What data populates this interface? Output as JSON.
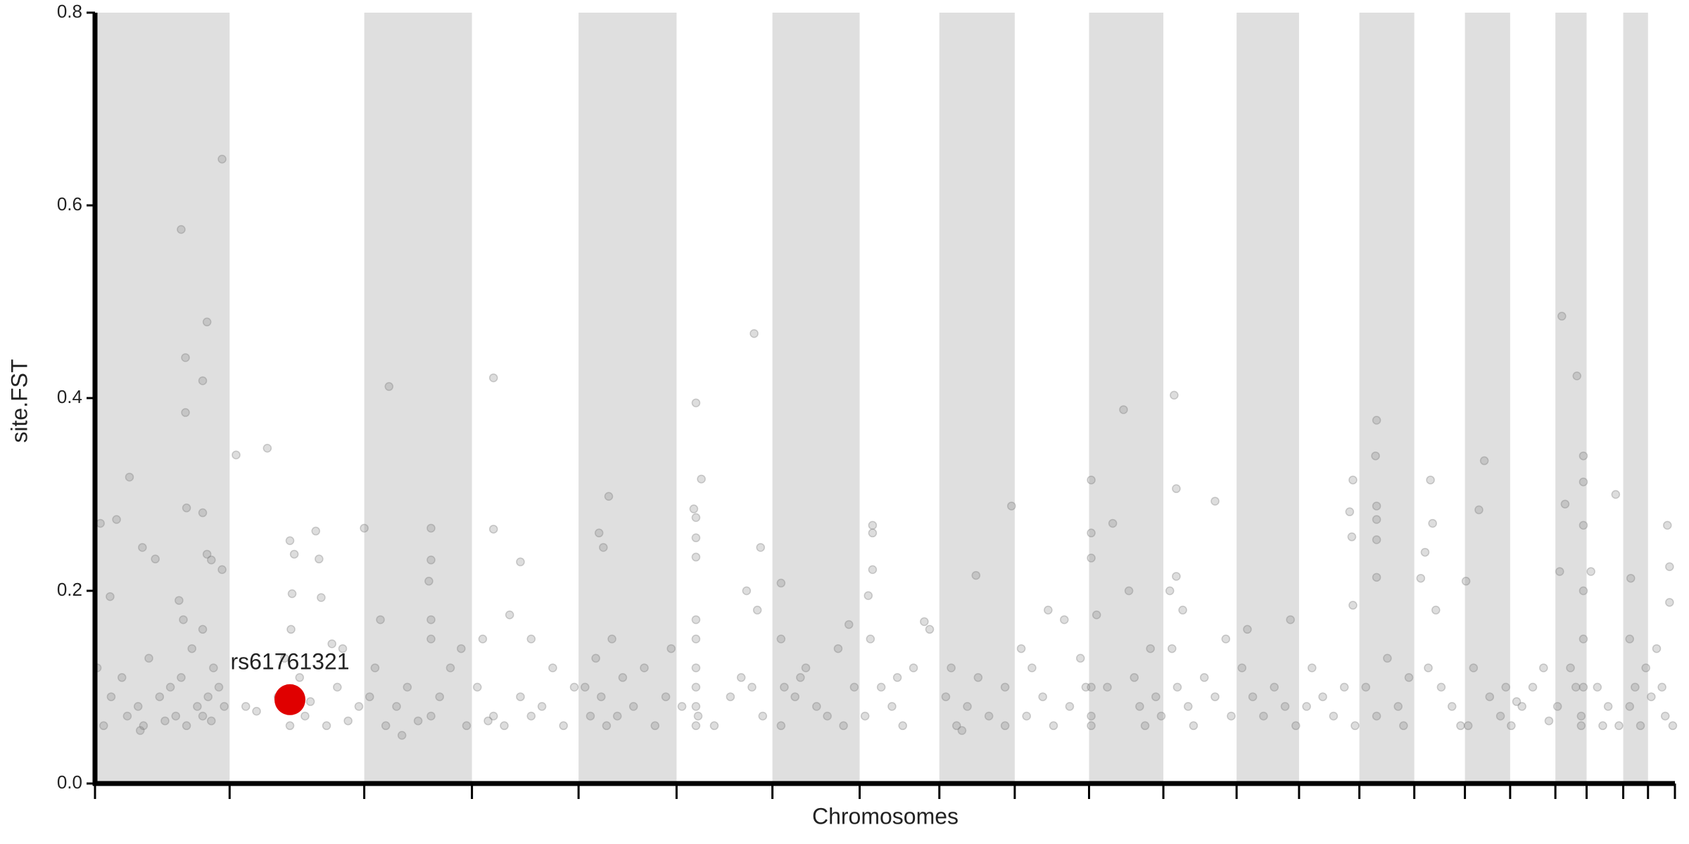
{
  "chart_data": {
    "type": "scatter",
    "xlabel": "Chromosomes",
    "ylabel": "site.FST",
    "xlim": [
      0,
      1467
    ],
    "xticks": [
      0,
      125,
      250,
      350,
      449,
      540,
      629,
      710,
      784,
      854,
      923,
      992,
      1060,
      1118,
      1174,
      1225,
      1272,
      1314,
      1356,
      1385,
      1419,
      1442,
      1467
    ],
    "ylim": [
      0,
      0.8
    ],
    "yticks": [
      {
        "value": 0,
        "label": "0.0"
      },
      {
        "value": 0.2,
        "label": "0.2"
      },
      {
        "value": 0.4,
        "label": "0.4"
      },
      {
        "value": 0.6,
        "label": "0.6"
      },
      {
        "value": 0.8,
        "label": "0.8"
      }
    ],
    "band_color": "#dfdfdf",
    "series": [
      {
        "color": "#777777",
        "x": [
          80,
          118,
          84,
          100,
          104,
          84,
          85,
          32,
          20,
          44,
          56,
          14,
          100,
          104,
          108,
          118,
          78,
          82,
          100,
          5,
          2,
          8,
          15,
          25,
          30,
          40,
          45,
          50,
          60,
          70,
          75,
          80,
          85,
          90,
          95,
          100,
          105,
          108,
          110,
          115,
          120,
          42,
          65,
          131,
          160,
          181,
          185,
          183,
          182,
          205,
          208,
          210,
          220,
          230,
          140,
          150,
          170,
          190,
          195,
          200,
          215,
          225,
          235,
          245,
          181,
          176,
          273,
          250,
          312,
          312,
          310,
          312,
          312,
          265,
          260,
          270,
          280,
          290,
          300,
          312,
          320,
          330,
          340,
          345,
          255,
          285,
          370,
          370,
          395,
          385,
          360,
          405,
          370,
          380,
          395,
          405,
          415,
          425,
          435,
          445,
          355,
          365,
          477,
          468,
          472,
          465,
          480,
          470,
          455,
          460,
          475,
          490,
          500,
          510,
          520,
          530,
          535,
          485,
          558,
          563,
          556,
          558,
          558,
          558,
          558,
          558,
          558,
          558,
          558,
          558,
          560,
          545,
          575,
          590,
          600,
          610,
          620,
          612,
          618,
          615,
          605,
          637,
          637,
          637,
          650,
          660,
          670,
          680,
          690,
          695,
          705,
          700,
          655,
          640,
          722,
          722,
          722,
          718,
          720,
          730,
          740,
          750,
          760,
          770,
          775,
          715,
          745,
          851,
          818,
          795,
          790,
          800,
          810,
          820,
          830,
          845,
          845,
          805,
          860,
          870,
          880,
          890,
          900,
          905,
          915,
          920,
          865,
          885,
          925,
          925,
          925,
          930,
          925,
          925,
          925,
          945,
          955,
          960,
          965,
          970,
          975,
          980,
          985,
          990,
          940,
          1002,
          1004,
          1004,
          998,
          1010,
          1000,
          1005,
          1015,
          1020,
          1030,
          1040,
          1050,
          1055,
          1040,
          1070,
          1065,
          1075,
          1085,
          1095,
          1105,
          1115,
          1110,
          1168,
          1165,
          1167,
          1168,
          1130,
          1140,
          1150,
          1160,
          1170,
          1125,
          1190,
          1189,
          1190,
          1190,
          1190,
          1190,
          1180,
          1190,
          1200,
          1210,
          1215,
          1220,
          1231,
          1235,
          1240,
          1242,
          1245,
          1250,
          1260,
          1268,
          1238,
          1273,
          1290,
          1285,
          1280,
          1295,
          1305,
          1310,
          1275,
          1315,
          1325,
          1335,
          1345,
          1350,
          1320,
          1362,
          1360,
          1365,
          1370,
          1375,
          1380,
          1380,
          1376,
          1382,
          1382,
          1382,
          1382,
          1382,
          1382,
          1358,
          1389,
          1395,
          1405,
          1412,
          1415,
          1400,
          1426,
          1425,
          1430,
          1425,
          1435,
          1440,
          1450,
          1455,
          1460,
          1462,
          1462,
          1458,
          1465,
          1445
        ],
        "values": [
          0.575,
          0.648,
          0.442,
          0.418,
          0.479,
          0.385,
          0.286,
          0.318,
          0.274,
          0.245,
          0.233,
          0.194,
          0.281,
          0.238,
          0.232,
          0.222,
          0.19,
          0.17,
          0.16,
          0.27,
          0.12,
          0.06,
          0.09,
          0.11,
          0.07,
          0.08,
          0.06,
          0.13,
          0.09,
          0.1,
          0.07,
          0.11,
          0.06,
          0.14,
          0.08,
          0.07,
          0.09,
          0.065,
          0.12,
          0.1,
          0.08,
          0.055,
          0.065,
          0.341,
          0.348,
          0.252,
          0.238,
          0.197,
          0.16,
          0.262,
          0.233,
          0.193,
          0.145,
          0.14,
          0.08,
          0.075,
          0.09,
          0.11,
          0.07,
          0.085,
          0.06,
          0.1,
          0.065,
          0.08,
          0.06,
          0.13,
          0.412,
          0.265,
          0.265,
          0.232,
          0.21,
          0.17,
          0.15,
          0.17,
          0.12,
          0.06,
          0.08,
          0.1,
          0.065,
          0.07,
          0.09,
          0.12,
          0.14,
          0.06,
          0.09,
          0.05,
          0.421,
          0.264,
          0.23,
          0.175,
          0.15,
          0.15,
          0.07,
          0.06,
          0.09,
          0.07,
          0.08,
          0.12,
          0.06,
          0.1,
          0.1,
          0.065,
          0.298,
          0.26,
          0.245,
          0.13,
          0.15,
          0.09,
          0.1,
          0.07,
          0.06,
          0.11,
          0.08,
          0.12,
          0.06,
          0.09,
          0.14,
          0.07,
          0.395,
          0.316,
          0.285,
          0.276,
          0.255,
          0.235,
          0.17,
          0.15,
          0.12,
          0.1,
          0.08,
          0.06,
          0.07,
          0.08,
          0.06,
          0.09,
          0.11,
          0.1,
          0.07,
          0.467,
          0.245,
          0.18,
          0.2,
          0.208,
          0.15,
          0.06,
          0.09,
          0.12,
          0.08,
          0.07,
          0.14,
          0.06,
          0.1,
          0.165,
          0.11,
          0.1,
          0.268,
          0.26,
          0.222,
          0.195,
          0.15,
          0.1,
          0.08,
          0.06,
          0.12,
          0.168,
          0.16,
          0.07,
          0.11,
          0.288,
          0.216,
          0.12,
          0.09,
          0.06,
          0.08,
          0.11,
          0.07,
          0.1,
          0.06,
          0.055,
          0.14,
          0.12,
          0.09,
          0.06,
          0.17,
          0.08,
          0.13,
          0.1,
          0.07,
          0.18,
          0.315,
          0.26,
          0.234,
          0.175,
          0.1,
          0.07,
          0.06,
          0.27,
          0.388,
          0.2,
          0.11,
          0.08,
          0.06,
          0.14,
          0.09,
          0.07,
          0.1,
          0.403,
          0.306,
          0.215,
          0.2,
          0.18,
          0.14,
          0.1,
          0.08,
          0.06,
          0.11,
          0.09,
          0.15,
          0.07,
          0.293,
          0.16,
          0.12,
          0.09,
          0.07,
          0.1,
          0.08,
          0.06,
          0.17,
          0.315,
          0.282,
          0.256,
          0.185,
          0.12,
          0.09,
          0.07,
          0.1,
          0.06,
          0.08,
          0.377,
          0.34,
          0.288,
          0.274,
          0.253,
          0.214,
          0.1,
          0.07,
          0.13,
          0.08,
          0.06,
          0.11,
          0.213,
          0.24,
          0.315,
          0.27,
          0.18,
          0.1,
          0.08,
          0.06,
          0.12,
          0.21,
          0.335,
          0.284,
          0.12,
          0.09,
          0.07,
          0.1,
          0.06,
          0.06,
          0.08,
          0.1,
          0.12,
          0.065,
          0.085,
          0.485,
          0.22,
          0.29,
          0.12,
          0.1,
          0.07,
          0.06,
          0.423,
          0.34,
          0.313,
          0.268,
          0.2,
          0.15,
          0.1,
          0.08,
          0.22,
          0.1,
          0.08,
          0.3,
          0.06,
          0.06,
          0.213,
          0.15,
          0.1,
          0.08,
          0.06,
          0.12,
          0.14,
          0.1,
          0.268,
          0.225,
          0.188,
          0.07,
          0.06,
          0.09
        ]
      }
    ],
    "highlight": {
      "label": "rs61761321",
      "x": 181,
      "y": 0.087,
      "color": "#e00000"
    }
  }
}
